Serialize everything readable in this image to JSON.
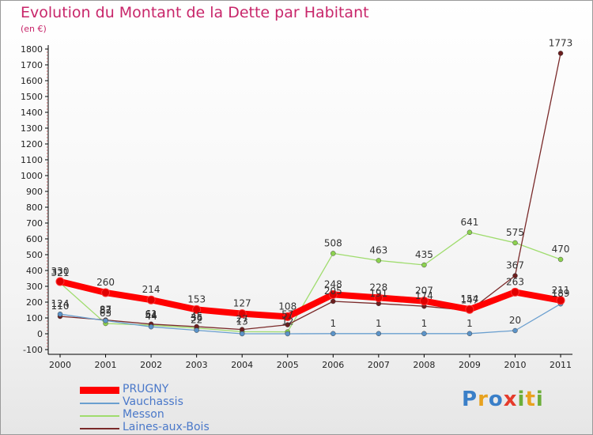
{
  "header": {
    "title": "Evolution du Montant de la Dette par Habitant",
    "unit": "(en €)"
  },
  "logo": {
    "text": "Proxiti",
    "colors": [
      "#3a7fc8",
      "#e8a21f",
      "#3a7fc8",
      "#e53b2b",
      "#6cae3a",
      "#e8a21f",
      "#6cae3a"
    ]
  },
  "chart_data": {
    "type": "line",
    "x": [
      "2000",
      "2001",
      "2002",
      "2003",
      "2004",
      "2005",
      "2006",
      "2007",
      "2008",
      "2009",
      "2010",
      "2011"
    ],
    "ylim": [
      -100,
      1800
    ],
    "yticks": [
      -100,
      0,
      100,
      200,
      300,
      400,
      500,
      600,
      700,
      800,
      900,
      1000,
      1100,
      1200,
      1300,
      1400,
      1500,
      1600,
      1700,
      1800
    ],
    "grid": false,
    "legend_position": "bottom-left",
    "series": [
      {
        "name": "PRUGNY",
        "color": "#ff0000",
        "marker": "#e00000",
        "values": [
          330,
          260,
          214,
          153,
          127,
          108,
          248,
          228,
          207,
          154,
          263,
          211
        ]
      },
      {
        "name": "Vauchassis",
        "color": "#6a9fcf",
        "marker": "#5b93c8",
        "values": [
          124,
          83,
          44,
          22,
          0,
          0,
          1,
          1,
          1,
          1,
          20,
          189
        ]
      },
      {
        "name": "Messon",
        "color": "#9fdc6d",
        "marker": "#8cd24f",
        "values": [
          321,
          65,
          54,
          36,
          13,
          12,
          508,
          463,
          435,
          641,
          575,
          470
        ]
      },
      {
        "name": "Laines-aux-Bois",
        "color": "#7a2a2a",
        "marker": "#6b1e1e",
        "values": [
          110,
          87,
          61,
          45,
          27,
          57,
          205,
          191,
          174,
          147,
          367,
          1773
        ]
      }
    ],
    "data_labels": [
      [
        "330",
        "260",
        "214",
        "153",
        "127",
        "108",
        "248",
        "228",
        "207",
        "154",
        "263",
        "211"
      ],
      [
        "124",
        "83",
        "44",
        "22",
        "",
        "",
        "1",
        "1",
        "1",
        "1",
        "20",
        "189"
      ],
      [
        "321",
        "65",
        "54",
        "36",
        "13",
        "12",
        "508",
        "463",
        "435",
        "641",
        "575",
        "470"
      ],
      [
        "110",
        "87",
        "61",
        "45",
        "27",
        "57",
        "205",
        "191",
        "174",
        "147",
        "367",
        "1773"
      ]
    ]
  }
}
